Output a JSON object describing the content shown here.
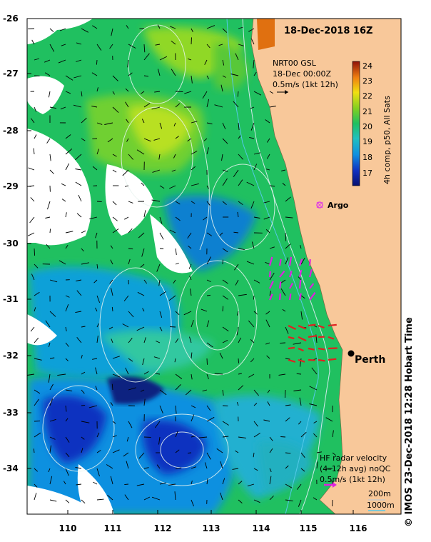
{
  "title": "18-Dec-2018 16Z",
  "current_info": {
    "line1": "NRT00 GSL",
    "line2": "18-Dec 00:00Z",
    "line3": "0.5m/s (1kt 12h)"
  },
  "colorbar": {
    "label": "4h comp, p50, All Sats",
    "ticks": [
      "24",
      "23",
      "22",
      "21",
      "20",
      "19",
      "18",
      "17"
    ],
    "min": 16.5,
    "max": 24.5
  },
  "markers": {
    "argo_label": "Argo",
    "perth_label": "Perth"
  },
  "hf_radar": {
    "line1": "HF radar velocity",
    "line2": "(4–12h avg) noQC",
    "line3": "0.5m/s (1kt 12h)"
  },
  "isobaths": {
    "shallow": "200m",
    "deep": "1000m"
  },
  "credit": "© IMOS 23-Dec-2018 12:28 Hobart Time",
  "axes": {
    "lat_ticks": [
      "-26",
      "-27",
      "-28",
      "-29",
      "-30",
      "-31",
      "-32",
      "-33",
      "-34"
    ],
    "lon_ticks": [
      "110",
      "111",
      "112",
      "113",
      "114",
      "115",
      "116"
    ]
  },
  "colors": {
    "land": "#f8c89a",
    "argo": "#e040e0",
    "radar_north": "#e020e0",
    "radar_south": "#e02020",
    "isobath_200": "#c8c8c8",
    "isobath_1000": "#55c8e8"
  }
}
